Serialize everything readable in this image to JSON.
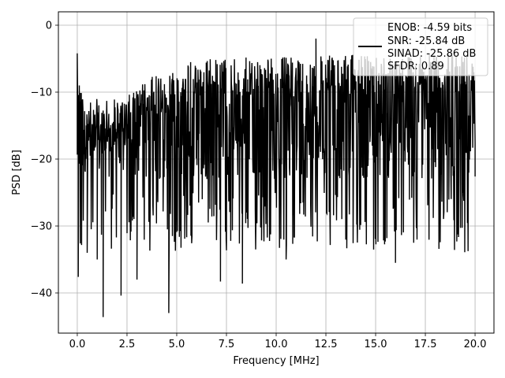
{
  "chart_data": {
    "type": "line",
    "title": "",
    "xlabel": "Frequency [MHz]",
    "ylabel": "PSD [dB]",
    "xlim": [
      -0.95,
      20.95
    ],
    "ylim": [
      -46,
      2
    ],
    "xticks": [
      0.0,
      2.5,
      5.0,
      7.5,
      10.0,
      12.5,
      15.0,
      17.5,
      20.0
    ],
    "xtick_labels": [
      "0.0",
      "2.5",
      "5.0",
      "7.5",
      "10.0",
      "12.5",
      "15.0",
      "17.5",
      "20.0"
    ],
    "yticks": [
      0,
      -10,
      -20,
      -30,
      -40
    ],
    "ytick_labels": [
      "0",
      "−10",
      "−20",
      "−30",
      "−40"
    ],
    "grid": true,
    "legend_position": "top-right",
    "legend_lines": [
      "ENOB: -4.59 bits",
      "SNR: -25.84 dB",
      "SINAD: -25.86 dB",
      "SFDR: 0.89"
    ],
    "series": [
      {
        "color": "#000000",
        "x_range": [
          0.0,
          20.0
        ],
        "description_points": [
          [
            0.0,
            -4.2
          ],
          [
            0.02,
            -14.5
          ],
          [
            0.05,
            -37.6
          ],
          [
            0.1,
            -9.0
          ],
          [
            0.15,
            -31.0
          ],
          [
            0.5,
            -34.0
          ],
          [
            1.0,
            -35.0
          ],
          [
            1.3,
            -43.6
          ],
          [
            2.2,
            -40.4
          ],
          [
            3.0,
            -38.0
          ],
          [
            4.6,
            -43.0
          ],
          [
            7.2,
            -38.3
          ],
          [
            8.3,
            -38.6
          ],
          [
            10.5,
            -35.0
          ],
          [
            16.0,
            -35.5
          ],
          [
            12.0,
            -2.0
          ],
          [
            20.0,
            -22.6
          ]
        ],
        "noise_floor_mean": -17,
        "peak_envelope": [
          [
            0.0,
            -4.2
          ],
          [
            0.5,
            -13.5
          ],
          [
            2.0,
            -12.0
          ],
          [
            3.5,
            -8.0
          ],
          [
            6.0,
            -5.0
          ],
          [
            20.0,
            -4.0
          ]
        ]
      }
    ]
  }
}
